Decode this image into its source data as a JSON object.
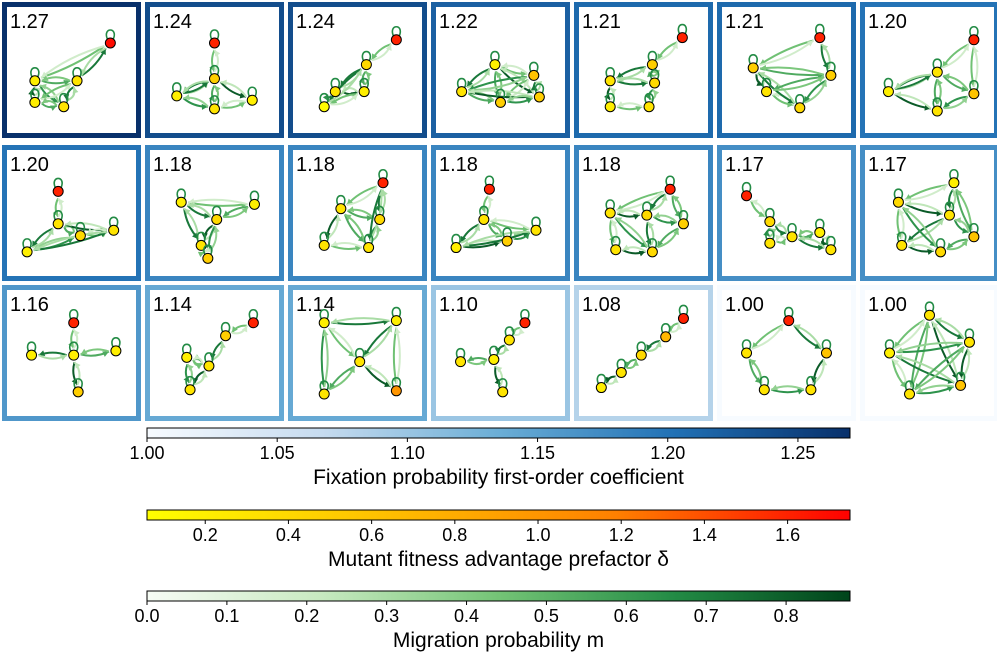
{
  "chart_data": {
    "type": "graph-grid",
    "description_free": true,
    "panels": [
      {
        "label": "1.27",
        "value": 1.27
      },
      {
        "label": "1.24",
        "value": 1.24
      },
      {
        "label": "1.24",
        "value": 1.24
      },
      {
        "label": "1.22",
        "value": 1.22
      },
      {
        "label": "1.21",
        "value": 1.21
      },
      {
        "label": "1.21",
        "value": 1.21
      },
      {
        "label": "1.20",
        "value": 1.2
      },
      {
        "label": "1.20",
        "value": 1.2
      },
      {
        "label": "1.18",
        "value": 1.18
      },
      {
        "label": "1.18",
        "value": 1.18
      },
      {
        "label": "1.18",
        "value": 1.18
      },
      {
        "label": "1.18",
        "value": 1.18
      },
      {
        "label": "1.17",
        "value": 1.17
      },
      {
        "label": "1.17",
        "value": 1.17
      },
      {
        "label": "1.16",
        "value": 1.16
      },
      {
        "label": "1.14",
        "value": 1.14
      },
      {
        "label": "1.14",
        "value": 1.14
      },
      {
        "label": "1.10",
        "value": 1.1
      },
      {
        "label": "1.08",
        "value": 1.08
      },
      {
        "label": "1.00",
        "value": 1.0
      },
      {
        "label": "1.00",
        "value": 1.0
      }
    ],
    "colorbars": [
      {
        "name": "fixation",
        "label": "Fixation probability first-order coefficient",
        "min": 1.0,
        "max": 1.27,
        "ticks": [
          1.0,
          1.05,
          1.1,
          1.15,
          1.2,
          1.25
        ],
        "tick_labels": [
          "1.00",
          "1.05",
          "1.10",
          "1.15",
          "1.20",
          "1.25"
        ],
        "colors": [
          "#f7fbff",
          "#c6dbef",
          "#6baed6",
          "#2171b5",
          "#08306b"
        ]
      },
      {
        "name": "fitness",
        "label": "Mutant fitness advantage prefactor δ",
        "min": 0.06,
        "max": 1.75,
        "ticks": [
          0.2,
          0.4,
          0.6,
          0.8,
          1.0,
          1.2,
          1.4,
          1.6
        ],
        "tick_labels": [
          "0.2",
          "0.4",
          "0.6",
          "0.8",
          "1.0",
          "1.2",
          "1.4",
          "1.6"
        ],
        "colors": [
          "#ffff00",
          "#ffc000",
          "#ff8000",
          "#ff0000"
        ]
      },
      {
        "name": "migration",
        "label": "Migration probability m",
        "min": 0.0,
        "max": 0.88,
        "ticks": [
          0.0,
          0.1,
          0.2,
          0.3,
          0.4,
          0.5,
          0.6,
          0.7,
          0.8
        ],
        "tick_labels": [
          "0.0",
          "0.1",
          "0.2",
          "0.3",
          "0.4",
          "0.5",
          "0.6",
          "0.7",
          "0.8"
        ],
        "colors": [
          "#f7fcf5",
          "#c7e9c0",
          "#74c476",
          "#238b45",
          "#00441b"
        ]
      }
    ]
  }
}
